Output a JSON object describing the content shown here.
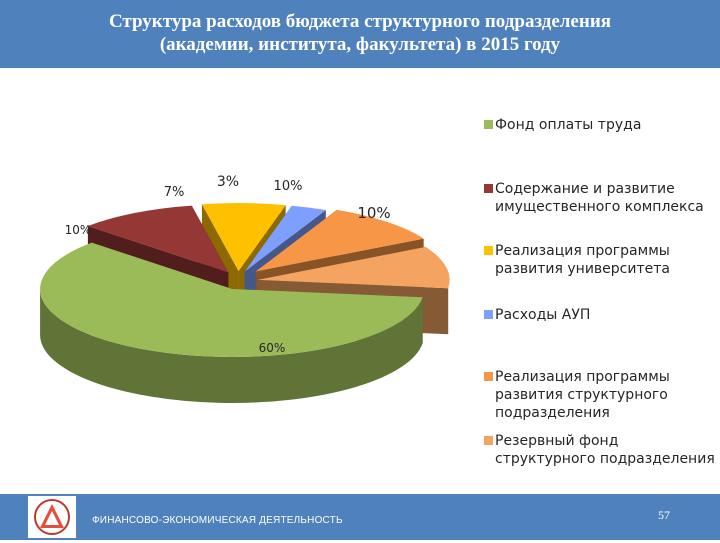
{
  "header": {
    "title_line1": "Структура расходов бюджета структурного подразделения",
    "title_line2": "(академии, института, факультета)  в 2015 году"
  },
  "chart_data": {
    "type": "pie",
    "title": "",
    "legend_position": "right",
    "slices": [
      {
        "label": "Фонд оплаты труда",
        "value": 60,
        "data_label": "60%",
        "color": "#9bbb59"
      },
      {
        "label": "Содержание и развитие имущественного комплекса",
        "value": 10,
        "data_label": "10%",
        "color": "#953735"
      },
      {
        "label": "Реализация программы развития университета",
        "value": 7,
        "data_label": "7%",
        "color": "#ffc000"
      },
      {
        "label": "Расходы АУП",
        "value": 3,
        "data_label": "3%",
        "color": "#7f9fff"
      },
      {
        "label": "Реализация программы развития структурного подразделения",
        "value": 10,
        "data_label": "10%",
        "color": "#f79646"
      },
      {
        "label": "Резервный фонд структурного подразделения",
        "value": 10,
        "data_label": "10%",
        "color": "#f4a460"
      }
    ]
  },
  "footer": {
    "text": "ФИНАНСОВО-ЭКОНОМИЧЕСКАЯ ДЕЯТЕЛЬНОСТЬ",
    "page_number": "57"
  }
}
